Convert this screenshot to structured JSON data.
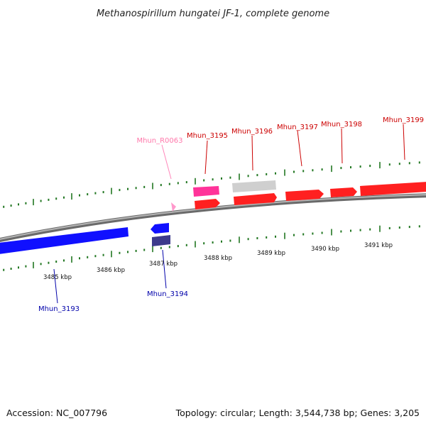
{
  "title": "Methanospirillum hungatei JF-1, complete genome",
  "footer": {
    "accession": "Accession: NC_007796",
    "stats": "Topology: circular; Length: 3,544,738 bp; Genes: 3,205"
  },
  "colors": {
    "forward_cds": "#ff0000",
    "reverse_cds": "#0000ff",
    "reverse_dark": "#3d3a8c",
    "trna_rrna_pink": "#ff3399",
    "rna_label": "#ff77aa",
    "pseudo_grey": "#c8c8c8",
    "backbone": "#8c8c8c",
    "tick": "#227722",
    "forward_label": "#cc0000",
    "reverse_label": "#0000aa"
  },
  "scale_labels": [
    "3485 kbp",
    "3486 kbp",
    "3487 kbp",
    "3488 kbp",
    "3489 kbp",
    "3490 kbp",
    "3491 kbp"
  ],
  "genes": {
    "forward": [
      "Mhun_R0063",
      "Mhun_3195",
      "Mhun_3196",
      "Mhun_3197",
      "Mhun_3198",
      "Mhun_3199"
    ],
    "reverse": [
      "Mhun_3193",
      "Mhun_3194"
    ]
  }
}
